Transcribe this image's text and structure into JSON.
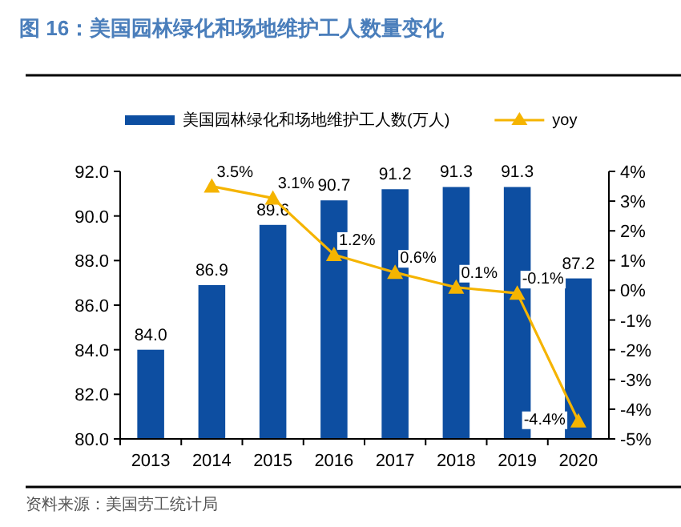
{
  "chart_data": {
    "type": "bar",
    "title": "图 16：美国园林绿化和场地维护工人数量变化",
    "categories": [
      "2013",
      "2014",
      "2015",
      "2016",
      "2017",
      "2018",
      "2019",
      "2020"
    ],
    "series": [
      {
        "name": "美国园林绿化和场地维护工人数(万人)",
        "color": "#0d4ea1",
        "values": [
          84.0,
          86.9,
          89.6,
          90.7,
          91.2,
          91.3,
          91.3,
          87.2
        ],
        "value_labels": [
          "84.0",
          "86.9",
          "89.6",
          "90.7",
          "91.2",
          "91.3",
          "91.3",
          "87.2"
        ]
      },
      {
        "name": "yoy",
        "type": "line",
        "axis": "y2",
        "color": "#f5b400",
        "marker": "triangle",
        "values": [
          null,
          3.5,
          3.1,
          1.2,
          0.6,
          0.1,
          -0.1,
          -4.4
        ],
        "value_labels": [
          null,
          "3.5%",
          "3.1%",
          "1.2%",
          "0.6%",
          "0.1%",
          "-0.1%",
          "-4.4%"
        ]
      }
    ],
    "data_labels": true,
    "ylim": [
      80,
      92
    ],
    "yticks": [
      {
        "value": 80,
        "label": "80.0"
      },
      {
        "value": 82,
        "label": "82.0"
      },
      {
        "value": 84,
        "label": "84.0"
      },
      {
        "value": 86,
        "label": "86.0"
      },
      {
        "value": 88,
        "label": "88.0"
      },
      {
        "value": 90,
        "label": "90.0"
      },
      {
        "value": 92,
        "label": "92.0"
      }
    ],
    "y2lim": [
      -5,
      4
    ],
    "y2ticks": [
      {
        "value": -5,
        "label": "-5%"
      },
      {
        "value": -4,
        "label": "-4%"
      },
      {
        "value": -3,
        "label": "-3%"
      },
      {
        "value": -2,
        "label": "-2%"
      },
      {
        "value": -1,
        "label": "-1%"
      },
      {
        "value": 0,
        "label": "0%"
      },
      {
        "value": 1,
        "label": "1%"
      },
      {
        "value": 2,
        "label": "2%"
      },
      {
        "value": 3,
        "label": "3%"
      },
      {
        "value": 4,
        "label": "4%"
      }
    ],
    "legend": "top",
    "grid": false,
    "annotations": [
      "资料来源：美国劳工统计局"
    ]
  }
}
